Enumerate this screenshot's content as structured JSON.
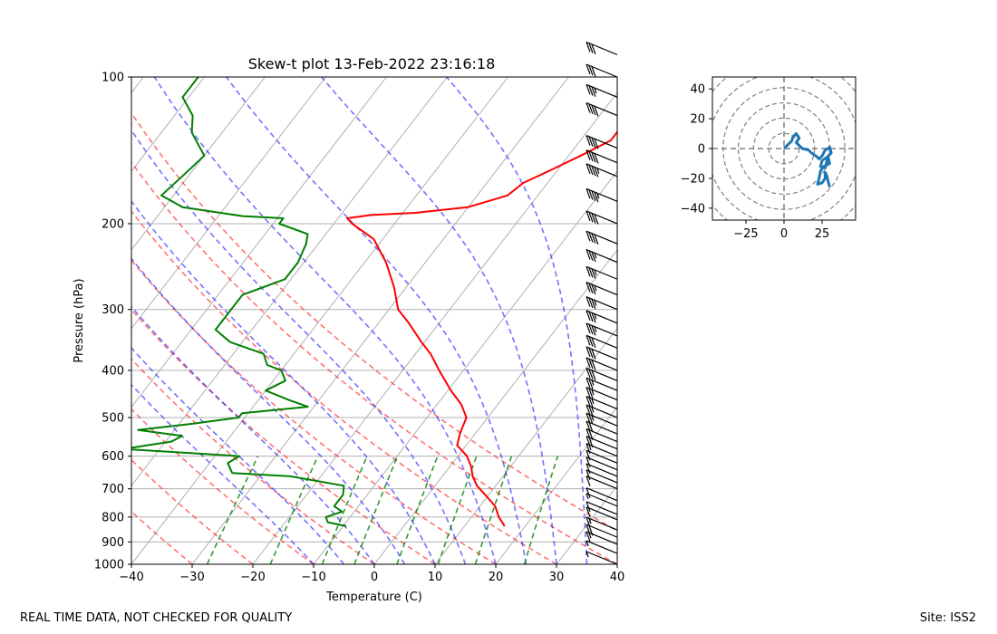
{
  "chart_data": [
    {
      "type": "skew-t",
      "title": "Skew-t plot 13-Feb-2022 23:16:18",
      "xlabel": "Temperature (C)",
      "ylabel": "Pressure (hPa)",
      "xlim": [
        -40,
        40
      ],
      "ylim": [
        1000,
        100
      ],
      "x_ticks": [
        -40,
        -30,
        -20,
        -10,
        0,
        10,
        20,
        30,
        40
      ],
      "x_tick_labels": [
        "−40",
        "−30",
        "−20",
        "−10",
        "0",
        "10",
        "20",
        "30",
        "40"
      ],
      "y_ticks": [
        1000,
        900,
        800,
        700,
        600,
        500,
        400,
        300,
        200,
        100
      ],
      "y_tick_labels": [
        "1000",
        "900",
        "800",
        "700",
        "600",
        "500",
        "400",
        "300",
        "200",
        "100"
      ],
      "skew_per_decade": 62,
      "isotherms_C": [
        -120,
        -110,
        -100,
        -90,
        -80,
        -70,
        -60,
        -50,
        -40,
        -30,
        -20,
        -10,
        0,
        10,
        20,
        30,
        40
      ],
      "dry_adiabats_theta_C": [
        -30,
        -20,
        -10,
        0,
        10,
        20,
        30,
        40,
        50
      ],
      "moist_adiabats_C": [
        -10,
        -5,
        0,
        5,
        10,
        15,
        20,
        25,
        30,
        35
      ],
      "mixing_ratio_lines_gkg": [
        0.4,
        1,
        2,
        3,
        5,
        8,
        12,
        20
      ],
      "series": [
        {
          "name": "temperature",
          "color": "#ff0000",
          "points": [
            [
              835,
              16.6
            ],
            [
              800,
              14.5
            ],
            [
              760,
              12.5
            ],
            [
              720,
              9.4
            ],
            [
              690,
              6.9
            ],
            [
              660,
              5.0
            ],
            [
              630,
              3.5
            ],
            [
              600,
              1.5
            ],
            [
              570,
              -1.5
            ],
            [
              540,
              -2.5
            ],
            [
              500,
              -3.5
            ],
            [
              470,
              -6
            ],
            [
              440,
              -9.5
            ],
            [
              400,
              -14
            ],
            [
              370,
              -17.5
            ],
            [
              350,
              -20.5
            ],
            [
              320,
              -25
            ],
            [
              300,
              -28.5
            ],
            [
              270,
              -32
            ],
            [
              240,
              -36.5
            ],
            [
              215,
              -41.5
            ],
            [
              200,
              -47
            ],
            [
              195,
              -48.5
            ],
            [
              192,
              -45
            ],
            [
              190,
              -38
            ],
            [
              185,
              -30
            ],
            [
              175,
              -25
            ],
            [
              165,
              -24
            ],
            [
              155,
              -21
            ],
            [
              145,
              -18
            ],
            [
              135,
              -15
            ],
            [
              125,
              -15
            ],
            [
              115,
              -11.5
            ],
            [
              108,
              -11.5
            ],
            [
              104,
              -8
            ],
            [
              100,
              -9
            ]
          ]
        },
        {
          "name": "dewpoint",
          "color": "#008000",
          "points": [
            [
              835,
              -9.5
            ],
            [
              820,
              -13
            ],
            [
              800,
              -14
            ],
            [
              780,
              -12
            ],
            [
              760,
              -14
            ],
            [
              740,
              -14
            ],
            [
              720,
              -14
            ],
            [
              690,
              -15
            ],
            [
              660,
              -25
            ],
            [
              650,
              -35
            ],
            [
              620,
              -37
            ],
            [
              600,
              -36
            ],
            [
              580,
              -56
            ],
            [
              560,
              -49
            ],
            [
              545,
              -48
            ],
            [
              530,
              -56
            ],
            [
              515,
              -48
            ],
            [
              500,
              -41
            ],
            [
              490,
              -41
            ],
            [
              475,
              -31
            ],
            [
              460,
              -35
            ],
            [
              440,
              -40
            ],
            [
              420,
              -38
            ],
            [
              400,
              -40
            ],
            [
              390,
              -43
            ],
            [
              370,
              -45
            ],
            [
              350,
              -52
            ],
            [
              330,
              -56
            ],
            [
              300,
              -56
            ],
            [
              280,
              -56
            ],
            [
              260,
              -51
            ],
            [
              240,
              -51
            ],
            [
              220,
              -52
            ],
            [
              210,
              -53
            ],
            [
              200,
              -59
            ],
            [
              195,
              -59
            ],
            [
              193,
              -66
            ],
            [
              185,
              -77
            ],
            [
              175,
              -82
            ],
            [
              160,
              -81
            ],
            [
              145,
              -80
            ],
            [
              130,
              -85
            ],
            [
              120,
              -87
            ],
            [
              110,
              -91
            ],
            [
              100,
              -91
            ]
          ]
        }
      ],
      "wind_barbs": {
        "pressures": [
          1000,
          950,
          910,
          880,
          850,
          810,
          790,
          760,
          740,
          700,
          680,
          660,
          640,
          620,
          600,
          580,
          560,
          540,
          520,
          500,
          480,
          460,
          440,
          420,
          400,
          380,
          360,
          340,
          320,
          300,
          280,
          260,
          240,
          220,
          200,
          180,
          160,
          150,
          140,
          120,
          110,
          100,
          90
        ],
        "speeds_kt": [
          5,
          5,
          15,
          20,
          15,
          10,
          10,
          5,
          10,
          10,
          10,
          10,
          10,
          10,
          15,
          20,
          20,
          20,
          25,
          25,
          25,
          25,
          25,
          30,
          30,
          30,
          30,
          35,
          35,
          35,
          35,
          35,
          35,
          40,
          40,
          45,
          45,
          40,
          40,
          40,
          35,
          30,
          30
        ]
      }
    },
    {
      "type": "hodograph",
      "xlim": [
        -47,
        47
      ],
      "ylim": [
        -48,
        48
      ],
      "x_ticks": [
        -25,
        0,
        25
      ],
      "x_tick_labels": [
        "−25",
        "0",
        "25"
      ],
      "y_ticks": [
        40,
        20,
        0,
        -20,
        -40
      ],
      "y_tick_labels": [
        "40",
        "20",
        "0",
        "−20",
        "−40"
      ],
      "ring_radii": [
        10,
        20,
        30,
        40,
        50,
        60
      ],
      "series": [
        {
          "name": "wind",
          "color": "#1f77b4",
          "u": [
            0,
            3,
            5,
            6,
            8,
            10,
            8,
            12,
            16,
            18,
            21,
            23,
            25,
            26,
            27,
            29,
            30,
            31,
            28,
            25,
            24,
            27,
            28,
            29,
            30,
            26,
            24,
            23,
            22,
            25,
            27,
            27,
            28,
            29,
            30
          ],
          "v": [
            0,
            3,
            5,
            8,
            10,
            7,
            4,
            0,
            -1,
            -3,
            -5,
            -7,
            -5,
            -3,
            -1,
            0,
            1,
            -3,
            -6,
            -8,
            -12,
            -13,
            -9,
            -6,
            -10,
            -12,
            -15,
            -20,
            -24,
            -23,
            -20,
            -16,
            -18,
            -22,
            -26
          ]
        }
      ]
    }
  ],
  "footer": {
    "left": "REAL TIME DATA, NOT CHECKED FOR QUALITY",
    "right": "Site: ISS2"
  }
}
